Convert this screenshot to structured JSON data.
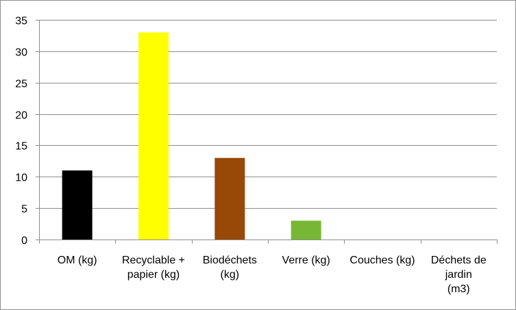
{
  "chart_data": {
    "type": "bar",
    "title": "",
    "xlabel": "",
    "ylabel": "",
    "categories": [
      [
        "OM (kg)"
      ],
      [
        "Recyclable +",
        "papier (kg)"
      ],
      [
        "Biodéchets",
        "(kg)"
      ],
      [
        "Verre (kg)"
      ],
      [
        "Couches (kg)"
      ],
      [
        "Déchets de",
        "jardin",
        "(m3)"
      ]
    ],
    "values": [
      11,
      33,
      13,
      3,
      0,
      0
    ],
    "bar_colors": [
      "#000000",
      "#ffff00",
      "#984807",
      "#77b735",
      "#ffffff",
      "#ffffff"
    ],
    "ylim": [
      0,
      35
    ],
    "yticks": [
      0,
      5,
      10,
      15,
      20,
      25,
      30,
      35
    ],
    "grid": true,
    "legend": "none",
    "colors": {
      "gridline": "#8c8c8c",
      "axis": "#8c8c8c",
      "frame": "#8c8c8c"
    }
  }
}
